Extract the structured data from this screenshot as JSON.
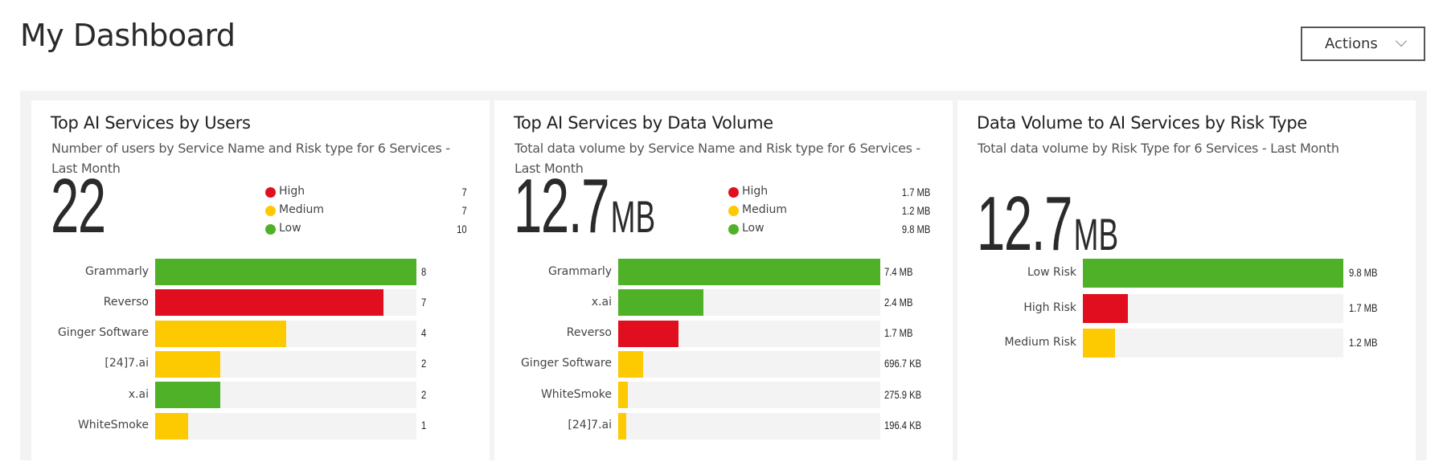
{
  "header": {
    "title": "My Dashboard",
    "actions_label": "Actions"
  },
  "colors": {
    "High": "#e10e1f",
    "Medium": "#fdc900",
    "Low": "#4fb128",
    "track": "#f3f3f3"
  },
  "cards": [
    {
      "title": "Top AI Services by Users",
      "subtitle": "Number of users by Service Name and Risk type for 6 Services - Last Month",
      "total": "22",
      "unit": "",
      "legend": [
        {
          "label": "High",
          "value": "7",
          "risk": "High"
        },
        {
          "label": "Medium",
          "value": "7",
          "risk": "Medium"
        },
        {
          "label": "Low",
          "value": "10",
          "risk": "Low"
        }
      ]
    },
    {
      "title": "Top AI Services by Data Volume",
      "subtitle": "Total data volume by Service Name and Risk type for 6 Services - Last Month",
      "total": "12.7",
      "unit": "MB",
      "legend": [
        {
          "label": "High",
          "value": "1.7 MB",
          "risk": "High"
        },
        {
          "label": "Medium",
          "value": "1.2 MB",
          "risk": "Medium"
        },
        {
          "label": "Low",
          "value": "9.8 MB",
          "risk": "Low"
        }
      ]
    },
    {
      "title": "Data Volume to AI Services by Risk Type",
      "subtitle": "Total data volume by Risk Type for 6 Services - Last Month",
      "total": "12.7",
      "unit": "MB",
      "legend": []
    }
  ],
  "chart_data": [
    {
      "type": "bar",
      "orientation": "horizontal",
      "xlim": [
        0,
        8
      ],
      "categories": [
        "Grammarly",
        "Reverso",
        "Ginger Software",
        "[24]7.ai",
        "x.ai",
        "WhiteSmoke"
      ],
      "values": [
        8,
        7,
        4,
        2,
        2,
        1
      ],
      "labels": [
        "8",
        "7",
        "4",
        "2",
        "2",
        "1"
      ],
      "risk": [
        "Low",
        "High",
        "Medium",
        "Medium",
        "Low",
        "Medium"
      ]
    },
    {
      "type": "bar",
      "orientation": "horizontal",
      "unit": "MB",
      "xlim": [
        0,
        7.4
      ],
      "categories": [
        "Grammarly",
        "x.ai",
        "Reverso",
        "Ginger Software",
        "WhiteSmoke",
        "[24]7.ai"
      ],
      "values": [
        7.4,
        2.4,
        1.7,
        0.6967,
        0.2759,
        0.1964
      ],
      "labels": [
        "7.4 MB",
        "2.4 MB",
        "1.7 MB",
        "696.7 KB",
        "275.9 KB",
        "196.4 KB"
      ],
      "risk": [
        "Low",
        "Low",
        "High",
        "Medium",
        "Medium",
        "Medium"
      ]
    },
    {
      "type": "bar",
      "orientation": "horizontal",
      "unit": "MB",
      "xlim": [
        0,
        9.8
      ],
      "categories": [
        "Low Risk",
        "High Risk",
        "Medium Risk"
      ],
      "values": [
        9.8,
        1.7,
        1.2
      ],
      "labels": [
        "9.8 MB",
        "1.7 MB",
        "1.2 MB"
      ],
      "risk": [
        "Low",
        "High",
        "Medium"
      ]
    }
  ]
}
